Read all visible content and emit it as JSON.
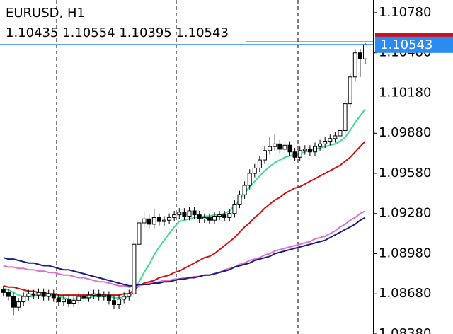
{
  "chart_data": {
    "type": "candlestick",
    "title": "EURUSD, H1",
    "subtitle": "1.10435 1.10554 1.10395 1.10543",
    "open": [
      1.0871,
      1.0869,
      1.0866,
      1.0858,
      1.0862,
      1.0866,
      1.0868,
      1.0867,
      1.0869,
      1.0866,
      1.0868,
      1.0865,
      1.0862,
      1.0864,
      1.0861,
      1.0863,
      1.0866,
      1.0865,
      1.0867,
      1.0868,
      1.0866,
      1.0867,
      1.0863,
      1.086,
      1.0864,
      1.0866,
      1.0868,
      1.0905,
      1.0921,
      1.0924,
      1.092,
      1.0925,
      1.0922,
      1.0923,
      1.0925,
      1.0927,
      1.0929,
      1.0926,
      1.093,
      1.0927,
      1.0924,
      1.0925,
      1.0923,
      1.0926,
      1.0927,
      1.0925,
      1.0928,
      1.0935,
      1.0942,
      1.0949,
      1.0958,
      1.0962,
      1.0968,
      1.0975,
      1.0978,
      1.098,
      1.0976,
      1.0979,
      1.0974,
      1.097,
      1.0975,
      1.0976,
      1.0974,
      1.0978,
      1.098,
      1.0982,
      1.0984,
      1.0986,
      1.099,
      1.101,
      1.103,
      1.1048,
      1.10435
    ],
    "high": [
      1.0874,
      1.0872,
      1.0869,
      1.0865,
      1.0869,
      1.0871,
      1.0871,
      1.0872,
      1.0872,
      1.0871,
      1.0871,
      1.0868,
      1.0867,
      1.0867,
      1.0866,
      1.0869,
      1.0869,
      1.087,
      1.0871,
      1.0871,
      1.087,
      1.087,
      1.0866,
      1.0867,
      1.0869,
      1.0871,
      1.0908,
      1.0924,
      1.0929,
      1.0927,
      1.0931,
      1.0928,
      1.0926,
      1.0928,
      1.093,
      1.0932,
      1.0932,
      1.0933,
      1.0933,
      1.093,
      1.0928,
      1.0928,
      1.0929,
      1.093,
      1.093,
      1.0931,
      1.0938,
      1.0945,
      1.0952,
      1.0961,
      1.0965,
      1.0971,
      1.0978,
      1.0985,
      1.0987,
      1.0983,
      1.0982,
      1.0982,
      1.0977,
      1.0978,
      1.0979,
      1.0979,
      1.0981,
      1.0983,
      1.0985,
      1.0987,
      1.0989,
      1.0993,
      1.1013,
      1.1033,
      1.1051,
      1.1051,
      1.10554
    ],
    "low": [
      1.0866,
      1.0863,
      1.0852,
      1.0855,
      1.0859,
      1.0863,
      1.0864,
      1.0864,
      1.0863,
      1.0863,
      1.0862,
      1.0859,
      1.0859,
      1.0858,
      1.0858,
      1.086,
      1.0862,
      1.0862,
      1.0864,
      1.0863,
      1.0863,
      1.086,
      1.0857,
      1.0857,
      1.0861,
      1.0863,
      1.0865,
      1.0902,
      1.0918,
      1.0917,
      1.0917,
      1.0919,
      1.0919,
      1.092,
      1.0922,
      1.0924,
      1.0923,
      1.0923,
      1.0924,
      1.0921,
      1.0921,
      1.092,
      1.092,
      1.0923,
      1.0922,
      1.0922,
      1.0925,
      1.0932,
      1.0939,
      1.0946,
      1.0955,
      1.0959,
      1.0965,
      1.0972,
      1.0975,
      1.0973,
      1.0973,
      1.0971,
      1.0967,
      1.0967,
      1.0972,
      1.0971,
      1.0971,
      1.0975,
      1.0977,
      1.0979,
      1.0981,
      1.0983,
      1.0987,
      1.1007,
      1.1027,
      1.103,
      1.10395
    ],
    "close": [
      1.0869,
      1.0866,
      1.0858,
      1.0862,
      1.0866,
      1.0868,
      1.0867,
      1.0869,
      1.0866,
      1.0868,
      1.0865,
      1.0862,
      1.0864,
      1.0861,
      1.0863,
      1.0866,
      1.0865,
      1.0867,
      1.0868,
      1.0866,
      1.0867,
      1.0863,
      1.086,
      1.0864,
      1.0866,
      1.0868,
      1.0905,
      1.0921,
      1.0924,
      1.092,
      1.0925,
      1.0922,
      1.0923,
      1.0925,
      1.0927,
      1.0929,
      1.0926,
      1.093,
      1.0927,
      1.0924,
      1.0925,
      1.0923,
      1.0926,
      1.0927,
      1.0925,
      1.0928,
      1.0935,
      1.0942,
      1.0949,
      1.0958,
      1.0962,
      1.0968,
      1.0975,
      1.0978,
      1.098,
      1.0976,
      1.0979,
      1.0974,
      1.097,
      1.0975,
      1.0976,
      1.0974,
      1.0978,
      1.098,
      1.0982,
      1.0984,
      1.0986,
      1.099,
      1.101,
      1.103,
      1.1048,
      1.10435,
      1.10543
    ],
    "up_color": "#ffffff",
    "down_color": "#000000",
    "outline_color": "#000000",
    "series": [
      {
        "color": "#3ddc97",
        "values": [
          1.0872,
          1.0871,
          1.0869,
          1.0867,
          1.0866,
          1.0866,
          1.0866,
          1.0867,
          1.0867,
          1.0867,
          1.0867,
          1.0866,
          1.0865,
          1.0864,
          1.0864,
          1.0864,
          1.0865,
          1.0865,
          1.0866,
          1.0866,
          1.0866,
          1.0866,
          1.0865,
          1.0865,
          1.0865,
          1.0866,
          1.087,
          1.0877,
          1.0884,
          1.089,
          1.0897,
          1.0903,
          1.0908,
          1.0913,
          1.0918,
          1.0922,
          1.0923,
          1.0924,
          1.0925,
          1.0925,
          1.0926,
          1.0926,
          1.0927,
          1.0927,
          1.0928,
          1.093,
          1.0934,
          1.0938,
          1.0943,
          1.0948,
          1.0952,
          1.0956,
          1.096,
          1.0963,
          1.0966,
          1.0968,
          1.097,
          1.0971,
          1.0972,
          1.0973,
          1.0974,
          1.0975,
          1.0976,
          1.0977,
          1.0978,
          1.0979,
          1.098,
          1.0982,
          1.0985,
          1.099,
          1.0996,
          1.1001,
          1.1006
        ]
      },
      {
        "color": "#d01010",
        "values": [
          1.0874,
          1.0873,
          1.0873,
          1.0872,
          1.0871,
          1.087,
          1.087,
          1.0869,
          1.0869,
          1.0868,
          1.0868,
          1.0867,
          1.0867,
          1.0867,
          1.0867,
          1.0867,
          1.0867,
          1.0867,
          1.0867,
          1.0867,
          1.0867,
          1.0867,
          1.0867,
          1.0867,
          1.0868,
          1.0868,
          1.0871,
          1.0874,
          1.0876,
          1.0877,
          1.0878,
          1.088,
          1.0881,
          1.0882,
          1.0884,
          1.0885,
          1.0887,
          1.0889,
          1.0891,
          1.0893,
          1.0895,
          1.0896,
          1.0898,
          1.0901,
          1.0904,
          1.0907,
          1.091,
          1.0914,
          1.0918,
          1.0921,
          1.0925,
          1.0928,
          1.0932,
          1.0935,
          1.0938,
          1.094,
          1.0943,
          1.0945,
          1.0947,
          1.0948,
          1.095,
          1.0952,
          1.0954,
          1.0956,
          1.0958,
          1.096,
          1.0962,
          1.0964,
          1.0967,
          1.097,
          1.0974,
          1.0978,
          1.0982
        ]
      },
      {
        "color": "#e070c8",
        "values": [
          1.0889,
          1.0888,
          1.0888,
          1.0887,
          1.0887,
          1.0886,
          1.0886,
          1.0885,
          1.0885,
          1.0884,
          1.0884,
          1.0883,
          1.0882,
          1.0882,
          1.0881,
          1.088,
          1.088,
          1.0879,
          1.0878,
          1.0877,
          1.0877,
          1.0876,
          1.0875,
          1.0874,
          1.0874,
          1.0873,
          1.0874,
          1.0874,
          1.0875,
          1.0876,
          1.0876,
          1.0877,
          1.0878,
          1.0878,
          1.0879,
          1.0879,
          1.088,
          1.088,
          1.0881,
          1.0881,
          1.0882,
          1.0882,
          1.0883,
          1.0884,
          1.0886,
          1.0887,
          1.0888,
          1.089,
          1.0891,
          1.0893,
          1.0894,
          1.0895,
          1.0897,
          1.0898,
          1.09,
          1.0901,
          1.0902,
          1.0903,
          1.0904,
          1.0905,
          1.0906,
          1.0907,
          1.0909,
          1.091,
          1.0911,
          1.0913,
          1.0915,
          1.0918,
          1.092,
          1.0923,
          1.0925,
          1.0928,
          1.093
        ]
      },
      {
        "color": "#1c1c80",
        "values": [
          1.0895,
          1.0894,
          1.0894,
          1.0893,
          1.0892,
          1.0891,
          1.0891,
          1.089,
          1.0889,
          1.0889,
          1.0888,
          1.0887,
          1.0886,
          1.0886,
          1.0885,
          1.0884,
          1.0883,
          1.0882,
          1.0881,
          1.088,
          1.0879,
          1.0878,
          1.0877,
          1.0876,
          1.0875,
          1.0874,
          1.0874,
          1.0875,
          1.0875,
          1.0875,
          1.0876,
          1.0876,
          1.0877,
          1.0877,
          1.0878,
          1.0879,
          1.0879,
          1.088,
          1.088,
          1.0881,
          1.0882,
          1.0882,
          1.0883,
          1.0884,
          1.0885,
          1.0886,
          1.0888,
          1.0889,
          1.089,
          1.0891,
          1.0893,
          1.0894,
          1.0895,
          1.0896,
          1.0898,
          1.0899,
          1.09,
          1.0901,
          1.0902,
          1.0903,
          1.0904,
          1.0905,
          1.0906,
          1.0907,
          1.0908,
          1.091,
          1.0912,
          1.0914,
          1.0916,
          1.0918,
          1.092,
          1.0923,
          1.0925
        ]
      }
    ],
    "bid_price": 1.10543,
    "bid_color": "#2a8cf0",
    "ask_price": 1.10563,
    "ask_color": "#d01020",
    "ylim": [
      1.0838,
      1.10875
    ],
    "yticks": [
      {
        "value": 1.1078,
        "label": "1.10780"
      },
      {
        "value": 1.1048,
        "label": "1.10480"
      },
      {
        "value": 1.1018,
        "label": "1.10180"
      },
      {
        "value": 1.0988,
        "label": "1.09880"
      },
      {
        "value": 1.0958,
        "label": "1.09580"
      },
      {
        "value": 1.0928,
        "label": "1.09280"
      },
      {
        "value": 1.0898,
        "label": "1.08980"
      },
      {
        "value": 1.0868,
        "label": "1.08680"
      },
      {
        "value": 1.0838,
        "label": "1.08380"
      }
    ]
  }
}
